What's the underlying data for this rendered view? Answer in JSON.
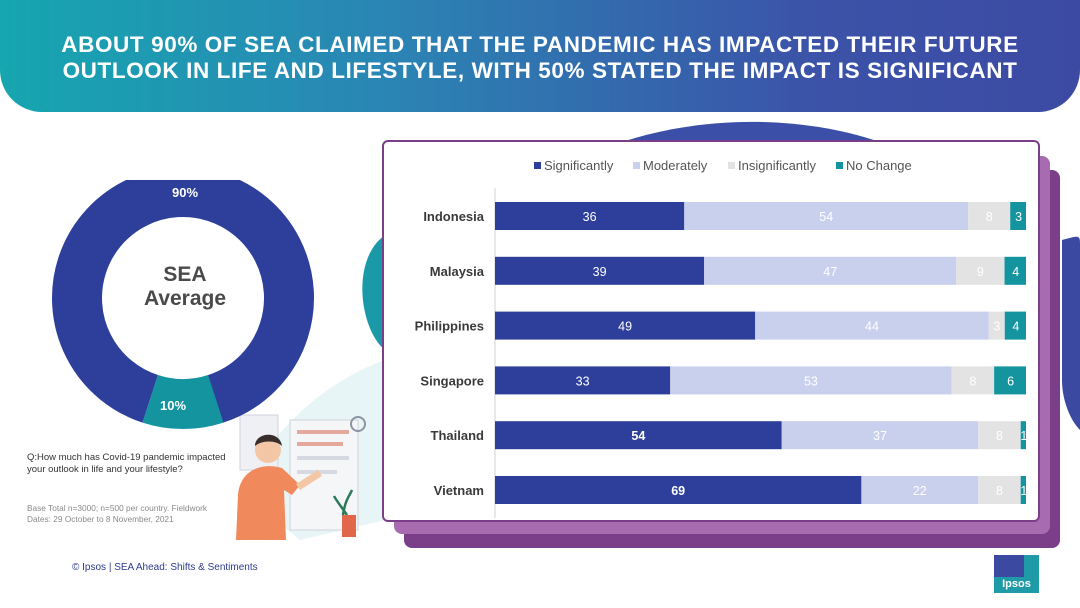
{
  "header": {
    "title_line1": "ABOUT 90% OF SEA CLAIMED THAT THE PANDEMIC HAS IMPACTED THEIR FUTURE",
    "title_line2": "OUTLOOK IN LIFE AND LIFESTYLE, WITH 50% STATED THE IMPACT IS SIGNIFICANT"
  },
  "donut": {
    "center_line1": "SEA",
    "center_line2": "Average",
    "label_major": "90%",
    "label_minor": "10%",
    "major_value": 90,
    "minor_value": 10,
    "major_color": "#2e3f9b",
    "minor_color": "#13949f"
  },
  "notes": {
    "question": "Q:How much has Covid-19 pandemic impacted your outlook in life and your lifestyle?",
    "base": "Base Total n=3000; n=500 per country. Fieldwork Dates: 29 October to 8 November, 2021"
  },
  "footer": {
    "text": "© Ipsos | SEA Ahead: Shifts & Sentiments"
  },
  "logo": {
    "text": "Ipsos"
  },
  "chart_data": {
    "type": "bar",
    "orientation": "horizontal",
    "stacked": true,
    "categories": [
      "Indonesia",
      "Malaysia",
      "Philippines",
      "Singapore",
      "Thailand",
      "Vietnam"
    ],
    "series": [
      {
        "name": "Significantly",
        "color": "#2e3f9b",
        "values": [
          36,
          39,
          49,
          33,
          54,
          69
        ]
      },
      {
        "name": "Moderately",
        "color": "#c9d0ee",
        "values": [
          54,
          47,
          44,
          53,
          37,
          22
        ]
      },
      {
        "name": "Insignificantly",
        "color": "#e3e3e3",
        "values": [
          8,
          9,
          3,
          8,
          8,
          8
        ]
      },
      {
        "name": "No Change",
        "color": "#13949f",
        "values": [
          3,
          4,
          4,
          6,
          1,
          1
        ]
      }
    ],
    "legend_position": "top",
    "grid": false
  }
}
